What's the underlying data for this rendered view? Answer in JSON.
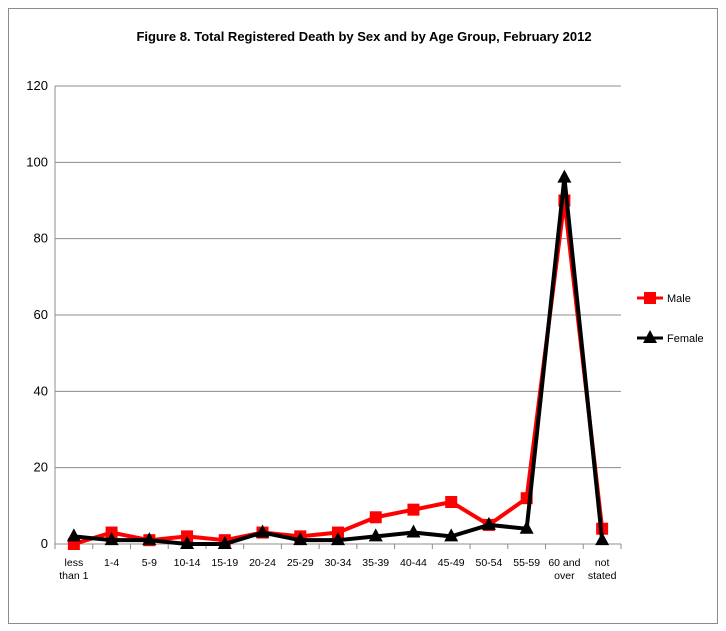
{
  "chart_data": {
    "type": "line",
    "title": "Figure 8. Total Registered Death by Sex and by Age Group, February 2012",
    "xlabel": "",
    "ylabel": "",
    "ylim": [
      0,
      120
    ],
    "yticks": [
      "0",
      "20",
      "40",
      "60",
      "80",
      "100",
      "120"
    ],
    "categories": [
      [
        "less",
        "than 1"
      ],
      [
        "1-4"
      ],
      [
        "5-9"
      ],
      [
        "10-14"
      ],
      [
        "15-19"
      ],
      [
        "20-24"
      ],
      [
        "25-29"
      ],
      [
        "30-34"
      ],
      [
        "35-39"
      ],
      [
        "40-44"
      ],
      [
        "45-49"
      ],
      [
        "50-54"
      ],
      [
        "55-59"
      ],
      [
        "60 and",
        "over"
      ],
      [
        "not",
        "stated"
      ]
    ],
    "grid": true,
    "legend_position": "right",
    "series": [
      {
        "name": "Male",
        "color": "#ff0000",
        "marker": "square",
        "values": [
          0,
          3,
          1,
          2,
          1,
          3,
          2,
          3,
          7,
          9,
          11,
          5,
          12,
          90,
          4
        ]
      },
      {
        "name": "Female",
        "color": "#000000",
        "marker": "triangle",
        "values": [
          2,
          1,
          1,
          0,
          0,
          3,
          1,
          1,
          2,
          3,
          2,
          5,
          4,
          96,
          1
        ]
      }
    ]
  }
}
